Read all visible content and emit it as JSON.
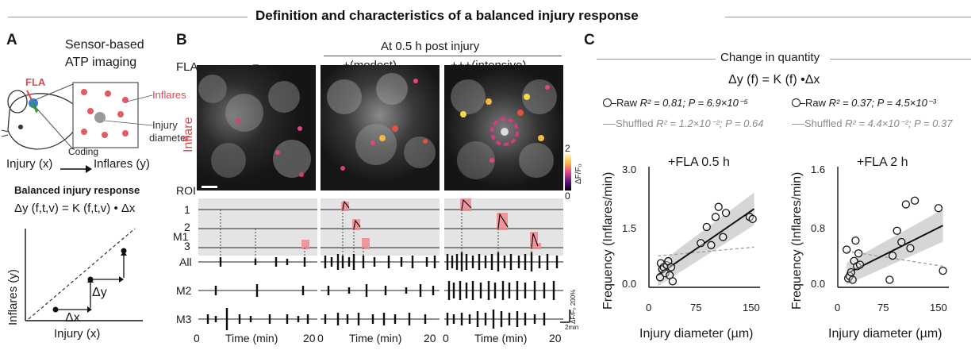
{
  "figure": {
    "title": "Definition and characteristics of a balanced injury response"
  },
  "panel_a": {
    "label": "A",
    "sensor_line1": "Sensor-based",
    "sensor_line2": "ATP imaging",
    "fla_label": "FLA",
    "inflares_label": "Inflares",
    "injury_diameter_line1": "Injury",
    "injury_diameter_line2": "diameter",
    "coding_label": "Coding",
    "injury_x": "Injury (x)",
    "inflares_y": "Inflares (y)",
    "balanced_title": "Balanced injury response",
    "equation": "Δy (f,t,v) = K (f,t,v) • Δx",
    "ylabel": "Inflares (y)",
    "xlabel": "Injury (x)",
    "dy_label": "Δy",
    "dx_label": "Δx"
  },
  "panel_b": {
    "label": "B",
    "header": "At 0.5 h post injury",
    "fla_label": "FLA",
    "conditions": [
      "−",
      "+(modest)",
      "+++(intensive)"
    ],
    "inflare_label": "Inflare",
    "colorbar_max": "2",
    "colorbar_min": "0",
    "colorbar_label": "ΔF/F₀",
    "roi_label": "ROI",
    "roi_numbers": [
      "1",
      "2",
      "3"
    ],
    "row_labels": {
      "m1": "M1",
      "all": "All",
      "m2": "M2",
      "m3": "M3"
    },
    "xlabel": "Time (min)",
    "x_tick_start": "0",
    "x_tick_end": "20",
    "scalebar_label": "ΔF/F₀ 200%",
    "time_scale": "2min"
  },
  "panel_c": {
    "label": "C",
    "header": "Change in quantity",
    "equation": "Δy (f) = K (f) •Δx",
    "legend_left": {
      "raw_prefix": "Raw ",
      "raw_stats": "R² = 0.81; P = 6.9×10⁻⁵",
      "shuffled_prefix": "Shuffled ",
      "shuffled_stats": "R² = 1.2×10⁻²; P = 0.64"
    },
    "legend_right": {
      "raw_prefix": "Raw ",
      "raw_stats": "R² = 0.37; P = 4.5×10⁻³",
      "shuffled_prefix": "Shuffled ",
      "shuffled_stats": "R² = 4.4×10⁻²; P = 0.37"
    }
  },
  "chart_data": [
    {
      "type": "scatter",
      "title": "+FLA 0.5 h",
      "xlabel": "Injury diameter (µm)",
      "ylabel": "Frequency (Inflares/min)",
      "xlim": [
        0,
        150
      ],
      "ylim": [
        0,
        3.0
      ],
      "x_ticks": [
        "0",
        "75",
        "150"
      ],
      "y_ticks": [
        "0.0",
        "1.5",
        "3.0"
      ],
      "series": [
        {
          "name": "Raw",
          "points": [
            [
              15,
              0.25
            ],
            [
              16,
              0.6
            ],
            [
              18,
              0.45
            ],
            [
              20,
              0.5
            ],
            [
              22,
              0.35
            ],
            [
              24,
              0.55
            ],
            [
              26,
              0.65
            ],
            [
              28,
              0.3
            ],
            [
              30,
              0.5
            ],
            [
              32,
              0.15
            ],
            [
              70,
              1.1
            ],
            [
              78,
              1.5
            ],
            [
              84,
              1.05
            ],
            [
              90,
              1.75
            ],
            [
              94,
              2.0
            ],
            [
              100,
              1.25
            ],
            [
              104,
              1.85
            ],
            [
              136,
              1.75
            ],
            [
              140,
              1.7
            ]
          ]
        },
        {
          "name": "Raw fit",
          "line": [
            [
              12,
              0.3
            ],
            [
              142,
              1.95
            ]
          ]
        },
        {
          "name": "Shuffled fit",
          "line": [
            [
              12,
              0.78
            ],
            [
              142,
              1.0
            ]
          ]
        }
      ]
    },
    {
      "type": "scatter",
      "title": "+FLA 2 h",
      "xlabel": "Injury diameter (µm)",
      "ylabel": "Frequency (Inflares/min)",
      "xlim": [
        0,
        150
      ],
      "ylim": [
        0,
        1.6
      ],
      "x_ticks": [
        "0",
        "75",
        "150"
      ],
      "y_ticks": [
        "0.0",
        "0.8",
        "1.6"
      ],
      "series": [
        {
          "name": "Raw",
          "points": [
            [
              12,
              0.5
            ],
            [
              14,
              0.12
            ],
            [
              16,
              0.15
            ],
            [
              18,
              0.2
            ],
            [
              20,
              0.1
            ],
            [
              22,
              0.35
            ],
            [
              24,
              0.62
            ],
            [
              26,
              0.28
            ],
            [
              28,
              0.45
            ],
            [
              30,
              0.3
            ],
            [
              70,
              0.1
            ],
            [
              74,
              0.42
            ],
            [
              80,
              0.75
            ],
            [
              86,
              0.6
            ],
            [
              92,
              1.1
            ],
            [
              98,
              0.52
            ],
            [
              104,
              1.15
            ],
            [
              136,
              1.05
            ],
            [
              142,
              0.22
            ]
          ]
        },
        {
          "name": "Raw fit",
          "line": [
            [
              12,
              0.18
            ],
            [
              142,
              0.82
            ]
          ]
        },
        {
          "name": "Shuffled fit",
          "line": [
            [
              12,
              0.48
            ],
            [
              142,
              0.28
            ]
          ]
        }
      ]
    }
  ]
}
